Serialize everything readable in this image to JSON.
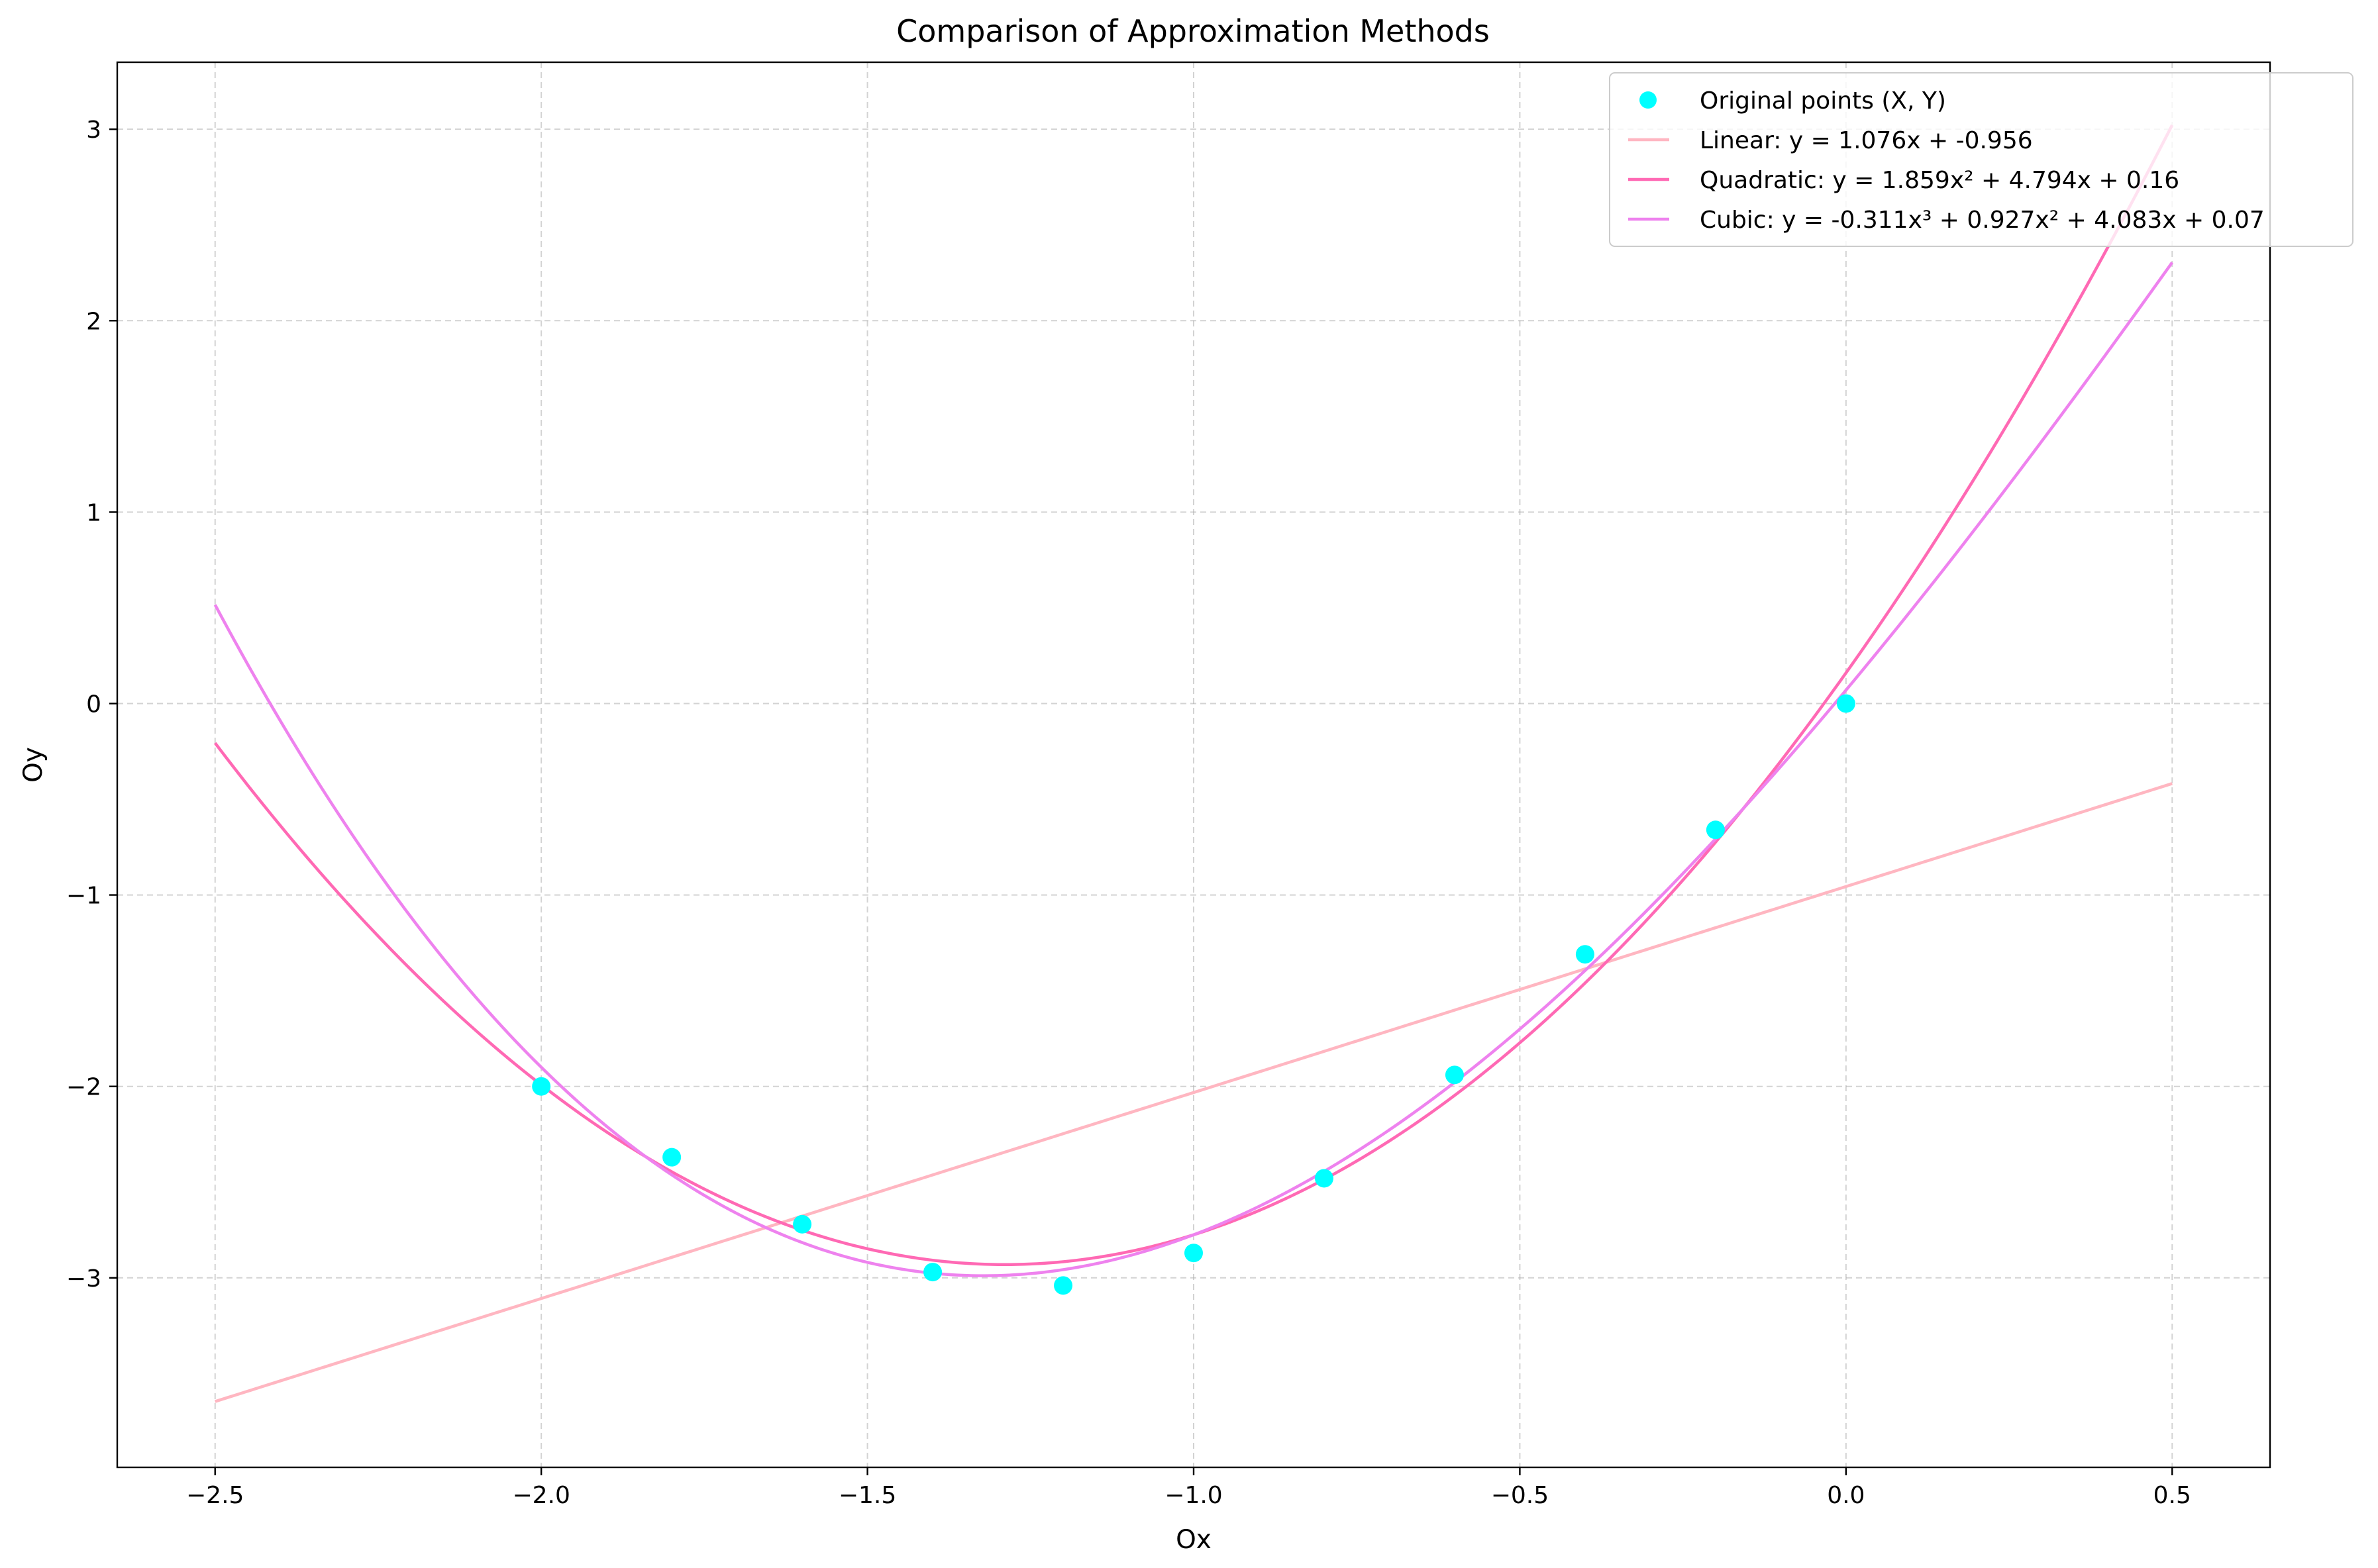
{
  "chart_data": {
    "type": "scatter",
    "title": "Comparison of Approximation Methods",
    "xlabel": "Ox",
    "ylabel": "Oy",
    "xlim": [
      -2.65,
      0.65
    ],
    "ylim": [
      -3.99,
      3.35
    ],
    "x_ticks": [
      -2.5,
      -2.0,
      -1.5,
      -1.0,
      -0.5,
      0.0,
      0.5
    ],
    "x_tick_labels": [
      "−2.5",
      "−2.0",
      "−1.5",
      "−1.0",
      "−0.5",
      "0.0",
      "0.5"
    ],
    "y_ticks": [
      -3,
      -2,
      -1,
      0,
      1,
      2,
      3
    ],
    "y_tick_labels": [
      "−3",
      "−2",
      "−1",
      "0",
      "1",
      "2",
      "3"
    ],
    "grid": true,
    "legend_position": "top-right",
    "points": {
      "name": "Original points (X, Y)",
      "color": "#00ffff",
      "x": [
        -2.0,
        -1.8,
        -1.6,
        -1.4,
        -1.2,
        -1.0,
        -0.8,
        -0.6,
        -0.4,
        -0.2,
        0.0
      ],
      "y": [
        -2.0,
        -2.37,
        -2.72,
        -2.97,
        -3.04,
        -2.87,
        -2.48,
        -1.94,
        -1.31,
        -0.66,
        0.0
      ]
    },
    "series": [
      {
        "name": "Linear: y = 1.076x + -0.956",
        "color": "#ffb6c1",
        "coefficients": [
          1.076,
          -0.956
        ],
        "x_range": [
          -2.5,
          0.5
        ]
      },
      {
        "name": "Quadratic: y = 1.859x² + 4.794x + 0.16",
        "color": "#ff69b4",
        "coefficients": [
          1.859,
          4.794,
          0.16
        ],
        "x_range": [
          -2.5,
          0.5
        ]
      },
      {
        "name": "Cubic: y = -0.311x³ + 0.927x² + 4.083x + 0.07",
        "color": "#ee82ee",
        "coefficients": [
          -0.311,
          0.927,
          4.083,
          0.07
        ],
        "x_range": [
          -2.5,
          0.5
        ]
      }
    ]
  }
}
